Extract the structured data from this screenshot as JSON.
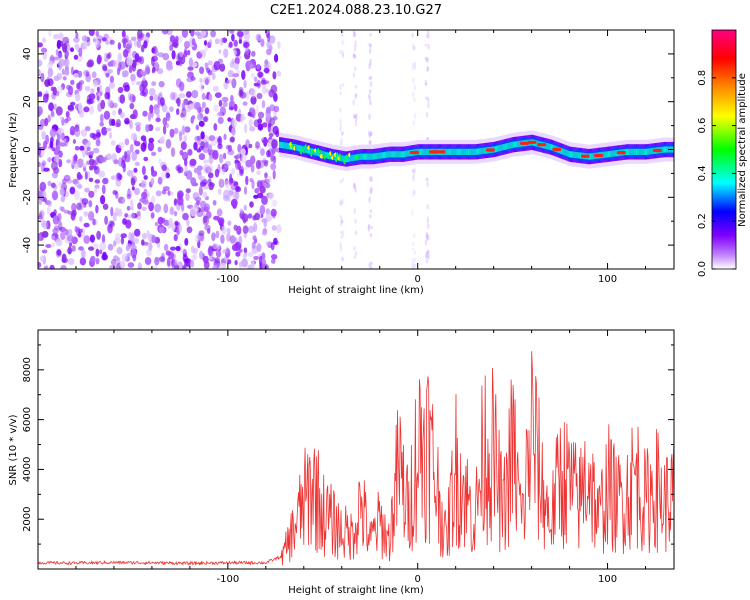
{
  "title": "C2E1.2024.088.23.10.G27",
  "chart_data": [
    {
      "type": "heatmap",
      "xlabel": "Height of straight line (km)",
      "ylabel": "Frequency (Hz)",
      "xlim": [
        -200,
        135
      ],
      "ylim": [
        -50,
        50
      ],
      "x_ticks": [
        -100,
        0,
        100
      ],
      "y_ticks": [
        -40,
        -20,
        0,
        20,
        40
      ],
      "colorbar": {
        "label": "Normalized spectral amplitude",
        "range": [
          0,
          1
        ],
        "ticks": [
          0.0,
          0.2,
          0.4,
          0.6,
          0.8
        ],
        "colors": [
          "#ffffff",
          "#8000ff",
          "#0000ff",
          "#00ffff",
          "#00ff00",
          "#ffff00",
          "#ff8000",
          "#ff0000",
          "#ff0080"
        ]
      },
      "noise_region_x": [
        -200,
        -73
      ],
      "signal_trace": {
        "x": [
          -73,
          -65,
          -55,
          -45,
          -38,
          -30,
          -24,
          -15,
          -8,
          0,
          10,
          20,
          30,
          40,
          50,
          60,
          70,
          80,
          90,
          100,
          110,
          120,
          130,
          135
        ],
        "y": [
          2,
          1,
          -1,
          -3,
          -4,
          -3,
          -3,
          -2,
          -2,
          -1,
          -1,
          -1,
          -1,
          0,
          2,
          3,
          1,
          -2,
          -3,
          -2,
          -1,
          -1,
          0,
          0
        ]
      }
    },
    {
      "type": "line",
      "xlabel": "Height of straight line (km)",
      "ylabel": "SNR (10 * v/v)",
      "xlim": [
        -200,
        135
      ],
      "ylim": [
        0,
        9600
      ],
      "x_ticks": [
        -100,
        0,
        100
      ],
      "y_ticks": [
        2000,
        4000,
        6000,
        8000
      ],
      "color": "#ee3333",
      "x": [
        -200,
        -180,
        -160,
        -140,
        -120,
        -100,
        -80,
        -72,
        -65,
        -60,
        -55,
        -50,
        -45,
        -40,
        -35,
        -30,
        -25,
        -20,
        -15,
        -10,
        -5,
        0,
        5,
        10,
        15,
        20,
        25,
        30,
        35,
        40,
        45,
        50,
        55,
        60,
        65,
        70,
        75,
        80,
        85,
        90,
        95,
        100,
        105,
        110,
        115,
        120,
        125,
        130,
        135
      ],
      "y": [
        250,
        240,
        260,
        250,
        230,
        250,
        250,
        500,
        2200,
        3500,
        4500,
        3000,
        2500,
        2000,
        1800,
        3500,
        1500,
        2500,
        1500,
        5500,
        3000,
        6500,
        7000,
        4500,
        1500,
        5500,
        4000,
        2500,
        6500,
        6000,
        3000,
        6500,
        2500,
        7500,
        4500,
        2500,
        5000,
        4500,
        3500,
        5500,
        2500,
        4500,
        3500,
        4000,
        5000,
        3500,
        4500,
        3500,
        4000
      ]
    }
  ]
}
